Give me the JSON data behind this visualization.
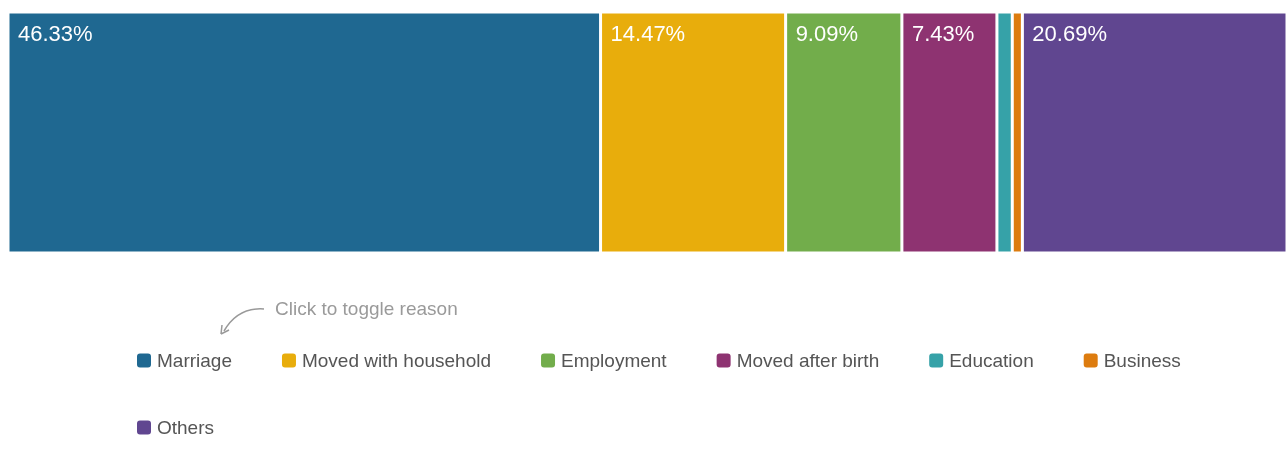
{
  "chart_data": {
    "type": "bar",
    "orientation": "horizontal",
    "stacked": true,
    "categories": [
      null
    ],
    "xlim": [
      0,
      100
    ],
    "tick_labels": false,
    "legend": "bottom",
    "annotations": [
      "Click to toggle reason"
    ],
    "series": [
      {
        "name": "Marriage",
        "color": "#1f6891",
        "values": [
          46.33
        ],
        "value_labels": [
          "46.33%"
        ]
      },
      {
        "name": "Moved with household",
        "color": "#e8ad0c",
        "values": [
          14.47
        ],
        "value_labels": [
          "14.47%"
        ]
      },
      {
        "name": "Employment",
        "color": "#72ad4b",
        "values": [
          9.09
        ],
        "value_labels": [
          "9.09%"
        ]
      },
      {
        "name": "Moved after birth",
        "color": "#8e3371",
        "values": [
          7.43
        ],
        "value_labels": [
          "7.43%"
        ]
      },
      {
        "name": "Education",
        "color": "#36a2a8",
        "values": [
          1.2
        ],
        "value_labels": [
          null
        ]
      },
      {
        "name": "Business",
        "color": "#dd7c0f",
        "values": [
          0.79
        ],
        "value_labels": [
          null
        ]
      },
      {
        "name": "Others",
        "color": "#604690",
        "values": [
          20.69
        ],
        "value_labels": [
          "20.69%"
        ]
      }
    ]
  }
}
